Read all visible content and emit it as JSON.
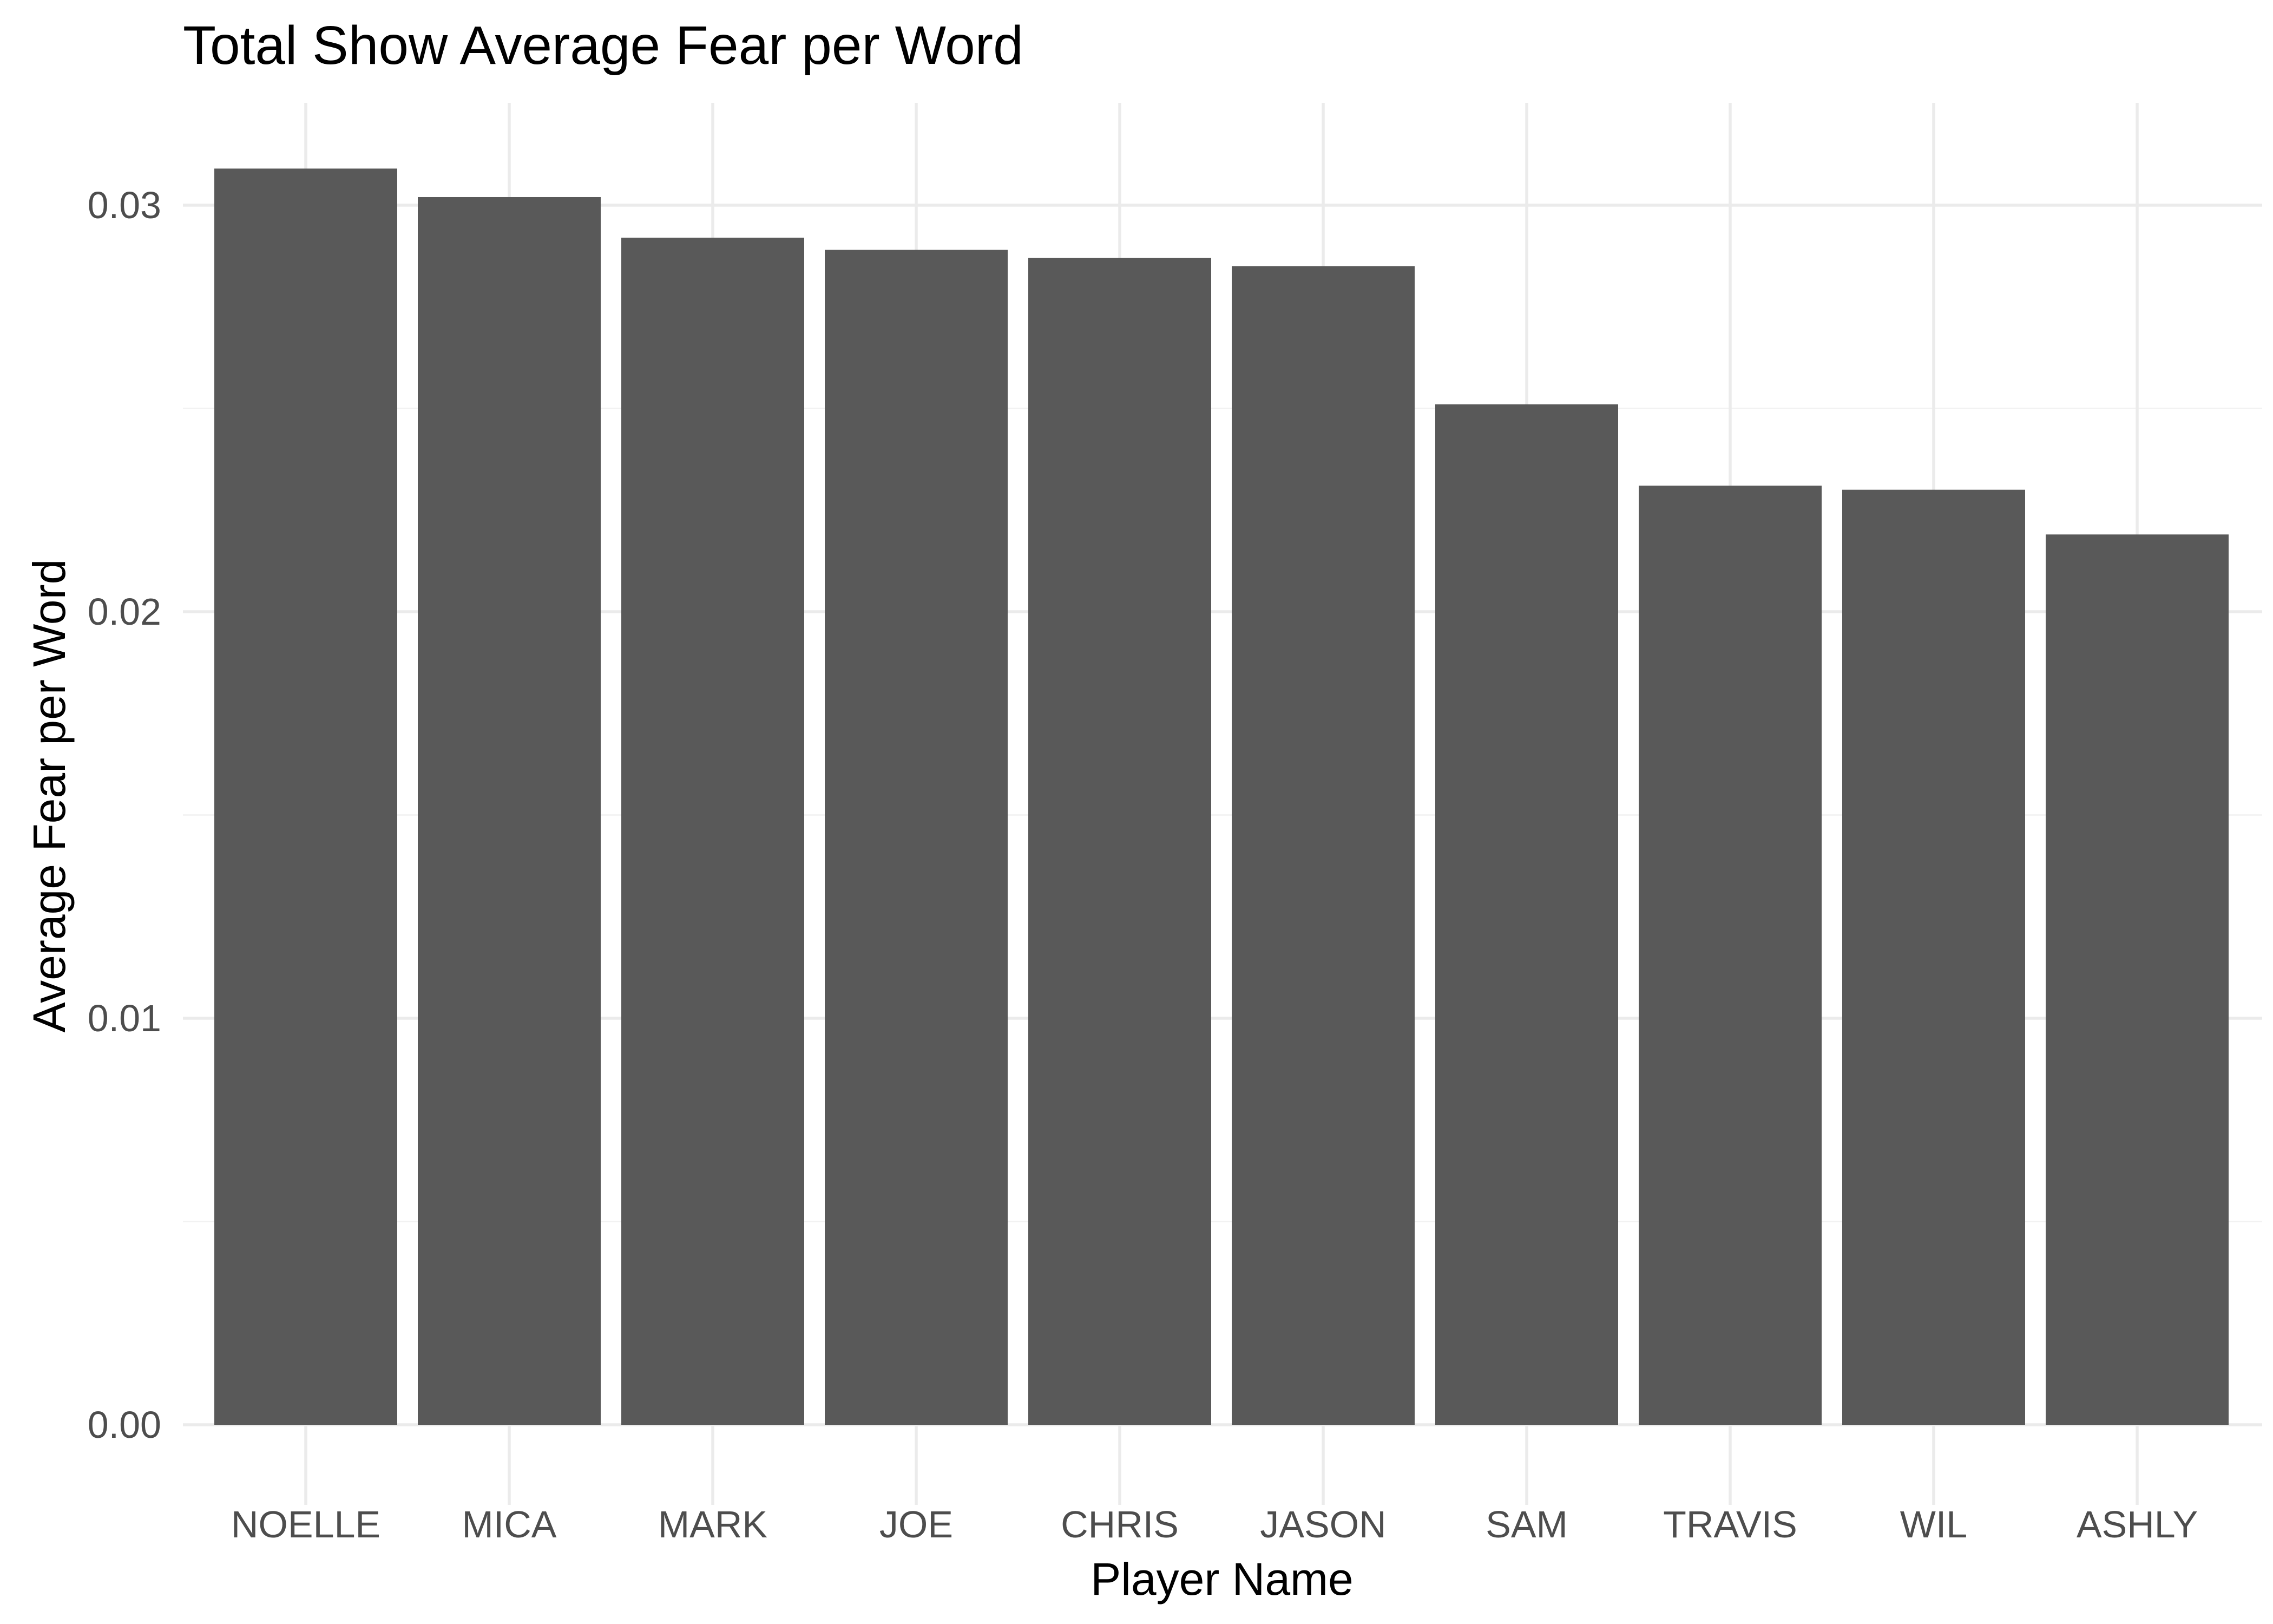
{
  "chart_data": {
    "type": "bar",
    "title": "Total Show Average Fear per Word",
    "xlabel": "Player Name",
    "ylabel": "Average Fear per Word",
    "categories": [
      "NOELLE",
      "MICA",
      "MARK",
      "JOE",
      "CHRIS",
      "JASON",
      "SAM",
      "TRAVIS",
      "WIL",
      "ASHLY"
    ],
    "values": [
      0.0309,
      0.0302,
      0.0292,
      0.0289,
      0.0287,
      0.0285,
      0.0251,
      0.0231,
      0.023,
      0.0219
    ],
    "ylim": [
      0,
      0.0325
    ],
    "yticks": [
      0,
      0.01,
      0.02,
      0.03
    ],
    "ytick_labels": [
      "0.00",
      "0.01",
      "0.02",
      "0.03"
    ],
    "grid": true,
    "bar_color": "#595959"
  }
}
